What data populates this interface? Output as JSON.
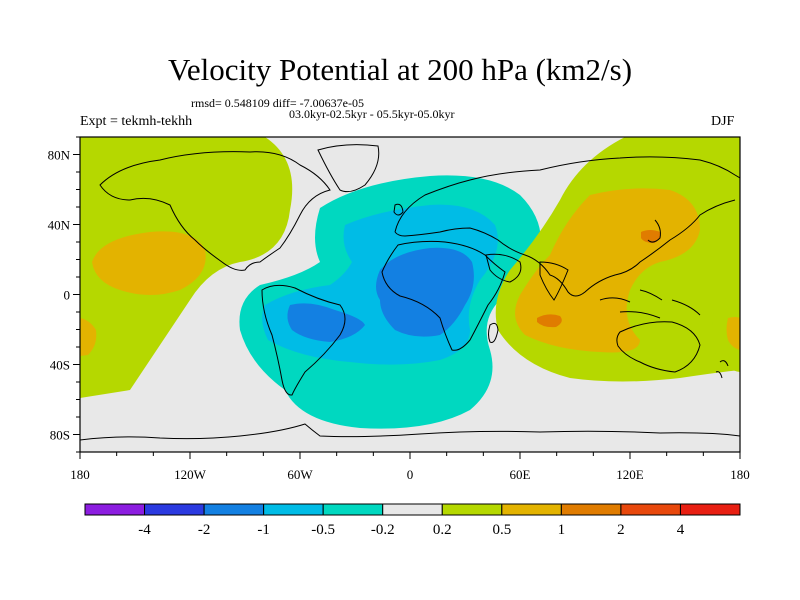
{
  "title": "Velocity Potential at 200 hPa (km2/s)",
  "stats_line": "rmsd= 0.548109 diff= -7.00637e-05",
  "period_line": "03.0kyr-02.5kyr - 05.5kyr-05.0kyr",
  "experiment": "Expt = tekmh-tekhh",
  "season": "DJF",
  "map": {
    "projection": "cylindrical equidistant",
    "background_color": "#e8e8e8",
    "lon_ticks": [
      "180",
      "120W",
      "60W",
      "0",
      "60E",
      "120E",
      "180"
    ],
    "lat_ticks": [
      "80N",
      "40N",
      "0",
      "40S",
      "80S"
    ],
    "regions": [
      {
        "name": "pacific-east-positive",
        "level": "0.2-0.5",
        "color": "#b5d800"
      },
      {
        "name": "pacific-east-core",
        "level": "0.5-1",
        "color": "#e3b300"
      },
      {
        "name": "atlantic-africa-negative",
        "level": "-0.5 to -0.2",
        "color": "#00d8c0"
      },
      {
        "name": "atlantic-africa-negative-mid",
        "level": "-1 to -0.5",
        "color": "#00bce6"
      },
      {
        "name": "atlantic-africa-negative-core",
        "level": "-2 to -1",
        "color": "#1380e2"
      },
      {
        "name": "indo-pacific-positive",
        "level": "0.2-0.5",
        "color": "#b5d800"
      },
      {
        "name": "indo-pacific-core",
        "level": "0.5-1",
        "color": "#e3b300"
      },
      {
        "name": "indo-pacific-peak",
        "level": "1-2",
        "color": "#e07c00"
      }
    ]
  },
  "colorbar": {
    "colors": [
      "#8c1de0",
      "#2b3ae0",
      "#1380e2",
      "#00bce6",
      "#00d8c0",
      "#e8e8e8",
      "#b5d800",
      "#e3b300",
      "#e07c00",
      "#e8480c",
      "#e81f12"
    ],
    "labels": [
      "-4",
      "-2",
      "-1",
      "-0.5",
      "-0.2",
      "0.2",
      "0.5",
      "1",
      "2",
      "4"
    ]
  }
}
